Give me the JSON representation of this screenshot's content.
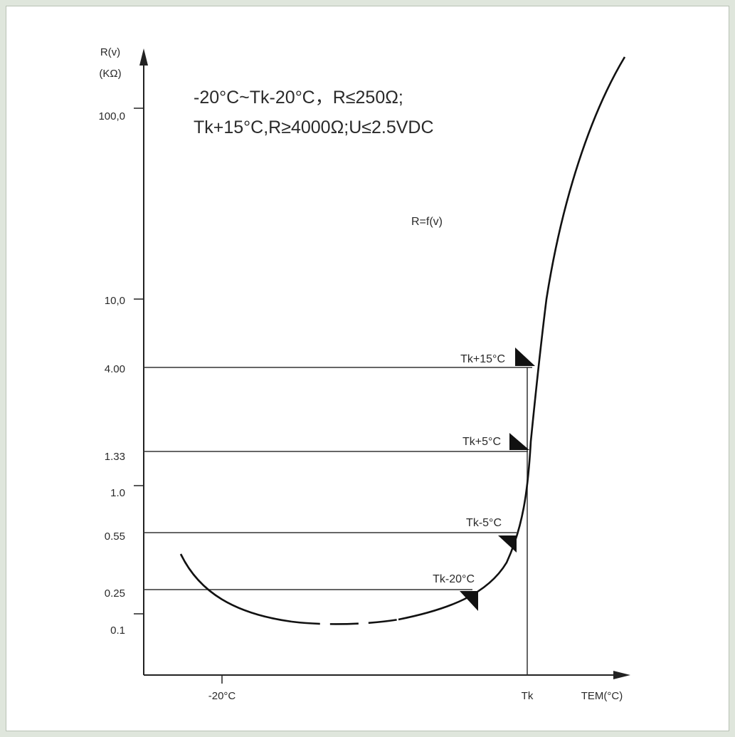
{
  "chart_data": {
    "type": "line",
    "ylabel_line1": "R(v)",
    "ylabel_line2": "(KΩ)",
    "xlabel": "TEM(°C)",
    "y_ticks": [
      "100,0",
      "10,0",
      "4.00",
      "1.33",
      "1.0",
      "0.55",
      "0.25",
      "0.1"
    ],
    "x_ticks": [
      "-20°C",
      "Tk"
    ],
    "conditions": [
      "-20°C~Tk-20°C，R≤250Ω;",
      "Tk+15°C,R≥4000Ω;U≤2.5VDC"
    ],
    "curve_label": "R=f(v)",
    "markers": [
      {
        "label": "Tk+15°C",
        "resistance": 4.0
      },
      {
        "label": "Tk+5°C",
        "resistance": 1.33
      },
      {
        "label": "Tk-5°C",
        "resistance": 0.55
      },
      {
        "label": "Tk-20°C",
        "resistance": 0.25
      }
    ],
    "series": [
      {
        "x_relative_to_Tk": [
          -28,
          -25,
          -20,
          -15,
          -10,
          -5,
          0,
          5,
          10,
          15,
          20
        ],
        "resistance_kohm": [
          0.45,
          0.17,
          0.09,
          0.08,
          0.12,
          0.25,
          0.9,
          1.33,
          3.0,
          4.0,
          150
        ]
      }
    ],
    "grid": false
  }
}
